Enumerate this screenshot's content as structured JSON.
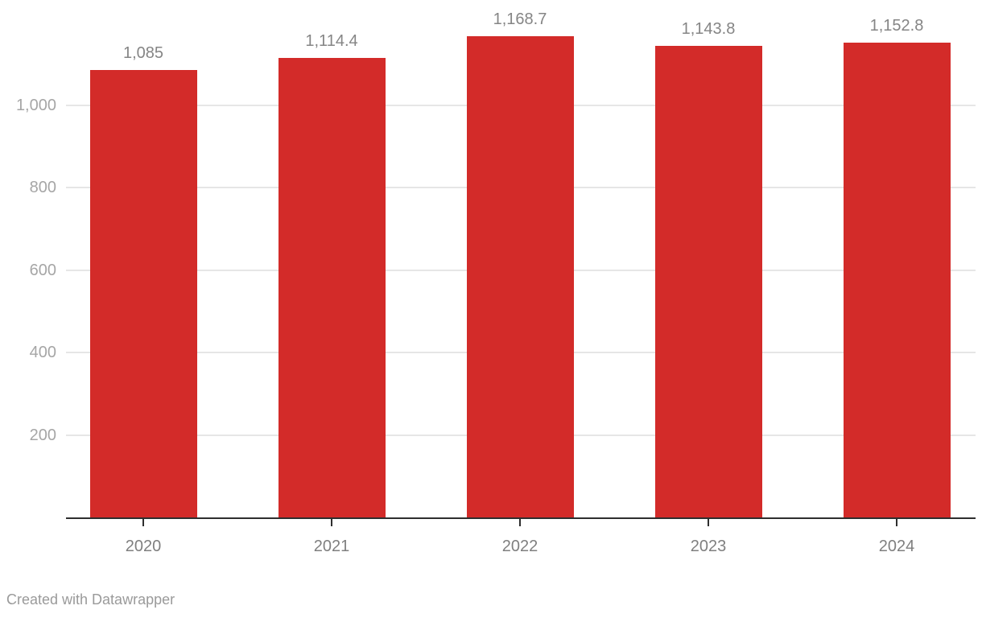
{
  "chart_data": {
    "type": "bar",
    "categories": [
      "2020",
      "2021",
      "2022",
      "2023",
      "2024"
    ],
    "values": [
      1085,
      1114.4,
      1168.7,
      1143.8,
      1152.8
    ],
    "value_labels": [
      "1,085",
      "1,114.4",
      "1,168.7",
      "1,143.8",
      "1,152.8"
    ],
    "title": "",
    "xlabel": "",
    "ylabel": "",
    "ylim": [
      0,
      1256
    ],
    "yticks": [
      200,
      400,
      600,
      800,
      1000
    ],
    "ytick_labels": [
      "200",
      "400",
      "600",
      "800",
      "1,000"
    ],
    "grid": true,
    "legend": false,
    "legend_position": "none",
    "bar_color": "#d32b29"
  },
  "colors": {
    "bar": "#d32b29",
    "axis_line": "#2e2e2e",
    "grid_line": "#e6e6e6",
    "value_label": "#858585",
    "category_label": "#7f7f7f",
    "ytick_label": "#a6a6a6",
    "attribution": "#9a9a9a",
    "background": "#ffffff"
  },
  "attribution": "Created with Datawrapper"
}
